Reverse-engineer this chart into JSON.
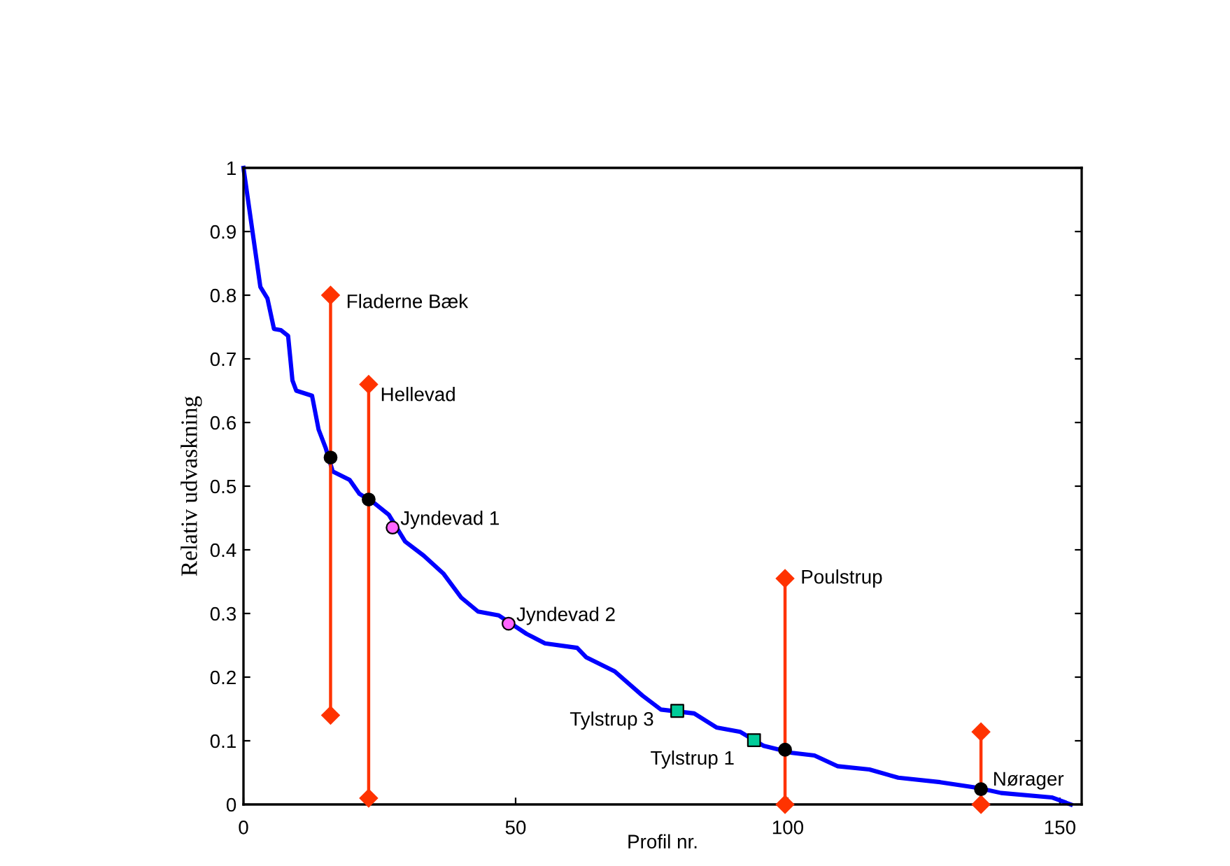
{
  "chart_data": {
    "type": "line",
    "xlabel": "Profil nr.",
    "ylabel": "Relativ udvaskning",
    "xlim": [
      0,
      154
    ],
    "ylim": [
      0,
      1
    ],
    "xticks": [
      0,
      50,
      100,
      150
    ],
    "yticks": [
      0,
      0.1,
      0.2,
      0.3,
      0.4,
      0.5,
      0.6,
      0.7,
      0.8,
      0.9,
      1
    ],
    "grid": false,
    "legend": false,
    "line_style": "solid",
    "marker": "none",
    "series": [
      {
        "color": "#0000ff",
        "x": [
          0,
          3.1,
          4.4,
          5.6,
          6.9,
          8.2,
          9.0,
          9.7,
          12.6,
          13.8,
          15.1,
          16.4,
          19.5,
          21.3,
          24.1,
          26.7,
          29.7,
          33.1,
          36.7,
          40,
          43.1,
          46.9,
          52,
          55.4,
          61.3,
          63,
          68.2,
          73.3,
          76.7,
          82.8,
          86.9,
          91.3,
          95.6,
          100.8,
          104.9,
          109.2,
          115,
          120.3,
          128,
          134.9,
          139.2,
          148.5,
          152
        ],
        "values": [
          1.0,
          0.813,
          0.795,
          0.747,
          0.745,
          0.736,
          0.666,
          0.65,
          0.642,
          0.589,
          0.56,
          0.523,
          0.51,
          0.488,
          0.473,
          0.455,
          0.413,
          0.391,
          0.363,
          0.325,
          0.303,
          0.297,
          0.268,
          0.253,
          0.246,
          0.231,
          0.209,
          0.171,
          0.149,
          0.143,
          0.121,
          0.114,
          0.092,
          0.081,
          0.077,
          0.06,
          0.055,
          0.042,
          0.035,
          0.026,
          0.018,
          0.011,
          0.0
        ]
      },
      {
        "name": "Fladerne Bæk",
        "color": "#ff3300",
        "marker": "diamond",
        "x": [
          16,
          16
        ],
        "values": [
          0.14,
          0.8
        ]
      },
      {
        "name": "Hellevad",
        "color": "#ff3300",
        "marker": "diamond",
        "x": [
          23,
          23
        ],
        "values": [
          0.01,
          0.66
        ]
      },
      {
        "name": "Poulstrup",
        "color": "#ff3300",
        "marker": "diamond",
        "x": [
          99.5,
          99.5
        ],
        "values": [
          0,
          0.355
        ]
      },
      {
        "name": "Nørager",
        "color": "#ff3300",
        "marker": "diamond",
        "x": [
          135.5,
          135.5
        ],
        "values": [
          0,
          0.114
        ]
      },
      {
        "type": "scatter",
        "color": "#000000",
        "marker": "circle",
        "x": [
          16,
          23,
          99.5,
          135.5
        ],
        "values": [
          0.545,
          0.479,
          0.086,
          0.024
        ]
      },
      {
        "type": "scatter",
        "name": "Jyndevad 1",
        "color": "#ff66ff",
        "marker": "circle",
        "x": [
          27.4
        ],
        "values": [
          0.435
        ]
      },
      {
        "type": "scatter",
        "name": "Jyndevad 2",
        "color": "#ff66ff",
        "marker": "circle",
        "x": [
          48.7
        ],
        "values": [
          0.284
        ]
      },
      {
        "type": "scatter",
        "name": "Tylstrup 3",
        "color": "#00cc99",
        "marker": "square",
        "x": [
          79.7
        ],
        "values": [
          0.147
        ]
      },
      {
        "type": "scatter",
        "name": "Tylstrup 1",
        "color": "#00cc99",
        "marker": "square",
        "x": [
          93.8
        ],
        "values": [
          0.101
        ]
      }
    ]
  }
}
